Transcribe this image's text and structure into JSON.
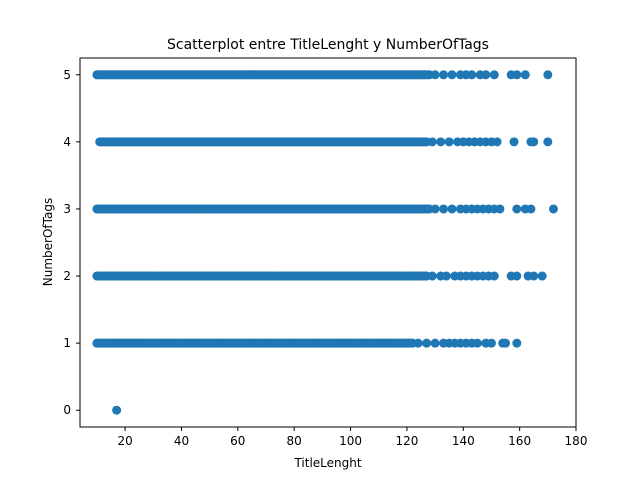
{
  "chart_data": {
    "type": "scatter",
    "title": "Scatterplot entre TitleLenght y NumberOfTags",
    "xlabel": "TitleLenght",
    "ylabel": "NumberOfTags",
    "xlim": [
      4,
      180
    ],
    "ylim": [
      -0.25,
      5.25
    ],
    "xticks": [
      20,
      40,
      60,
      80,
      100,
      120,
      140,
      160,
      180
    ],
    "yticks": [
      0,
      1,
      2,
      3,
      4,
      5
    ],
    "grid": false,
    "marker_color": "#1f77b4",
    "series": [
      {
        "dense_runs": [
          {
            "y": 5,
            "x_from": 10,
            "x_to": 128
          },
          {
            "y": 4,
            "x_from": 11,
            "x_to": 127
          },
          {
            "y": 3,
            "x_from": 10,
            "x_to": 128
          },
          {
            "y": 2,
            "x_from": 10,
            "x_to": 127
          },
          {
            "y": 1,
            "x_from": 10,
            "x_to": 122
          }
        ],
        "points": [
          {
            "x": 17,
            "y": 0
          },
          {
            "x": 130,
            "y": 5
          },
          {
            "x": 133,
            "y": 5
          },
          {
            "x": 136,
            "y": 5
          },
          {
            "x": 139,
            "y": 5
          },
          {
            "x": 141,
            "y": 5
          },
          {
            "x": 143,
            "y": 5
          },
          {
            "x": 146,
            "y": 5
          },
          {
            "x": 148,
            "y": 5
          },
          {
            "x": 151,
            "y": 5
          },
          {
            "x": 157,
            "y": 5
          },
          {
            "x": 159,
            "y": 5
          },
          {
            "x": 162,
            "y": 5
          },
          {
            "x": 170,
            "y": 5
          },
          {
            "x": 129,
            "y": 4
          },
          {
            "x": 132,
            "y": 4
          },
          {
            "x": 135,
            "y": 4
          },
          {
            "x": 138,
            "y": 4
          },
          {
            "x": 140,
            "y": 4
          },
          {
            "x": 142,
            "y": 4
          },
          {
            "x": 144,
            "y": 4
          },
          {
            "x": 146,
            "y": 4
          },
          {
            "x": 148,
            "y": 4
          },
          {
            "x": 150,
            "y": 4
          },
          {
            "x": 152,
            "y": 4
          },
          {
            "x": 158,
            "y": 4
          },
          {
            "x": 164,
            "y": 4
          },
          {
            "x": 165,
            "y": 4
          },
          {
            "x": 170,
            "y": 4
          },
          {
            "x": 130,
            "y": 3
          },
          {
            "x": 133,
            "y": 3
          },
          {
            "x": 136,
            "y": 3
          },
          {
            "x": 139,
            "y": 3
          },
          {
            "x": 141,
            "y": 3
          },
          {
            "x": 143,
            "y": 3
          },
          {
            "x": 145,
            "y": 3
          },
          {
            "x": 147,
            "y": 3
          },
          {
            "x": 149,
            "y": 3
          },
          {
            "x": 151,
            "y": 3
          },
          {
            "x": 153,
            "y": 3
          },
          {
            "x": 159,
            "y": 3
          },
          {
            "x": 162,
            "y": 3
          },
          {
            "x": 164,
            "y": 3
          },
          {
            "x": 172,
            "y": 3
          },
          {
            "x": 129,
            "y": 2
          },
          {
            "x": 132,
            "y": 2
          },
          {
            "x": 134,
            "y": 2
          },
          {
            "x": 137,
            "y": 2
          },
          {
            "x": 139,
            "y": 2
          },
          {
            "x": 141,
            "y": 2
          },
          {
            "x": 143,
            "y": 2
          },
          {
            "x": 145,
            "y": 2
          },
          {
            "x": 147,
            "y": 2
          },
          {
            "x": 149,
            "y": 2
          },
          {
            "x": 151,
            "y": 2
          },
          {
            "x": 157,
            "y": 2
          },
          {
            "x": 159,
            "y": 2
          },
          {
            "x": 163,
            "y": 2
          },
          {
            "x": 165,
            "y": 2
          },
          {
            "x": 168,
            "y": 2
          },
          {
            "x": 124,
            "y": 1
          },
          {
            "x": 127,
            "y": 1
          },
          {
            "x": 130,
            "y": 1
          },
          {
            "x": 133,
            "y": 1
          },
          {
            "x": 135,
            "y": 1
          },
          {
            "x": 137,
            "y": 1
          },
          {
            "x": 139,
            "y": 1
          },
          {
            "x": 141,
            "y": 1
          },
          {
            "x": 143,
            "y": 1
          },
          {
            "x": 145,
            "y": 1
          },
          {
            "x": 148,
            "y": 1
          },
          {
            "x": 150,
            "y": 1
          },
          {
            "x": 154,
            "y": 1
          },
          {
            "x": 155,
            "y": 1
          },
          {
            "x": 159,
            "y": 1
          }
        ]
      }
    ]
  }
}
